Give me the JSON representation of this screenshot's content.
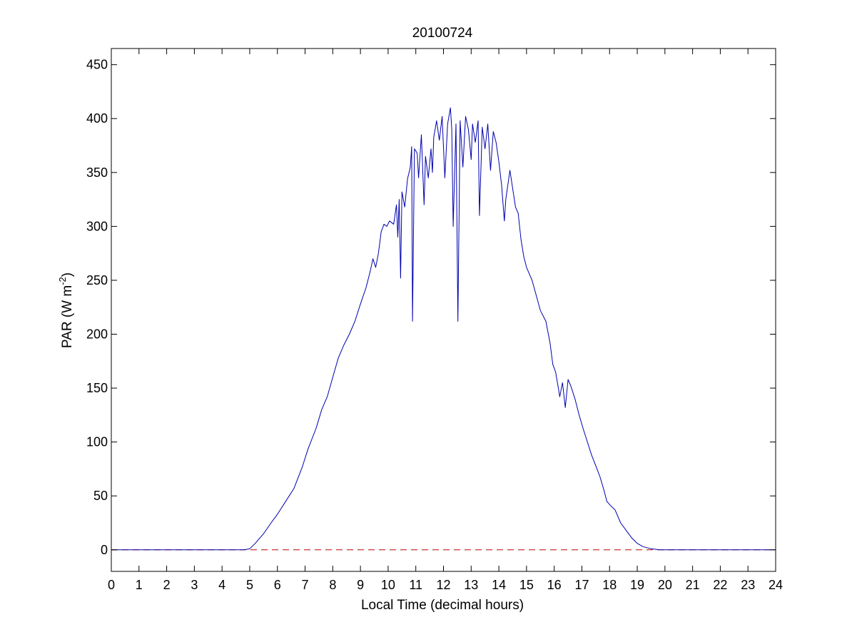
{
  "chart_data": {
    "type": "line",
    "title": "20100724",
    "xlabel": "Local Time (decimal hours)",
    "ylabel": {
      "prefix": "PAR (W m",
      "superscript": "-2",
      "suffix": ")"
    },
    "xlim": [
      0,
      24
    ],
    "ylim": [
      -20,
      465
    ],
    "xticks": [
      "0",
      "1",
      "2",
      "3",
      "4",
      "5",
      "6",
      "7",
      "8",
      "9",
      "10",
      "11",
      "12",
      "13",
      "14",
      "15",
      "16",
      "17",
      "18",
      "19",
      "20",
      "21",
      "22",
      "23",
      "24"
    ],
    "yticks": [
      "0",
      "50",
      "100",
      "150",
      "200",
      "250",
      "300",
      "350",
      "400",
      "450"
    ],
    "grid": false,
    "colors": {
      "series": "#0000ad",
      "reference": "#c00000",
      "axes": "#000000"
    },
    "series": [
      {
        "points": [
          [
            0,
            0
          ],
          [
            4.8,
            0
          ],
          [
            5.0,
            1
          ],
          [
            5.2,
            6
          ],
          [
            5.5,
            15
          ],
          [
            5.8,
            26
          ],
          [
            6.0,
            33
          ],
          [
            6.3,
            45
          ],
          [
            6.6,
            57
          ],
          [
            6.9,
            77
          ],
          [
            7.1,
            93
          ],
          [
            7.4,
            113
          ],
          [
            7.6,
            130
          ],
          [
            7.7,
            136
          ],
          [
            7.8,
            142
          ],
          [
            8.0,
            160
          ],
          [
            8.2,
            178
          ],
          [
            8.4,
            190
          ],
          [
            8.6,
            200
          ],
          [
            8.8,
            212
          ],
          [
            9.0,
            228
          ],
          [
            9.2,
            243
          ],
          [
            9.35,
            258
          ],
          [
            9.45,
            270
          ],
          [
            9.55,
            262
          ],
          [
            9.65,
            275
          ],
          [
            9.75,
            295
          ],
          [
            9.85,
            302
          ],
          [
            9.95,
            300
          ],
          [
            10.05,
            305
          ],
          [
            10.2,
            302
          ],
          [
            10.3,
            320
          ],
          [
            10.35,
            290
          ],
          [
            10.4,
            325
          ],
          [
            10.45,
            252
          ],
          [
            10.5,
            332
          ],
          [
            10.6,
            318
          ],
          [
            10.7,
            344
          ],
          [
            10.8,
            355
          ],
          [
            10.85,
            374
          ],
          [
            10.88,
            212
          ],
          [
            10.95,
            372
          ],
          [
            11.05,
            368
          ],
          [
            11.1,
            345
          ],
          [
            11.2,
            385
          ],
          [
            11.3,
            320
          ],
          [
            11.35,
            365
          ],
          [
            11.45,
            345
          ],
          [
            11.55,
            372
          ],
          [
            11.6,
            350
          ],
          [
            11.65,
            383
          ],
          [
            11.75,
            398
          ],
          [
            11.85,
            380
          ],
          [
            11.95,
            402
          ],
          [
            12.05,
            345
          ],
          [
            12.15,
            395
          ],
          [
            12.25,
            410
          ],
          [
            12.3,
            390
          ],
          [
            12.35,
            300
          ],
          [
            12.45,
            395
          ],
          [
            12.52,
            212
          ],
          [
            12.6,
            398
          ],
          [
            12.7,
            355
          ],
          [
            12.8,
            402
          ],
          [
            12.9,
            390
          ],
          [
            13.0,
            362
          ],
          [
            13.05,
            395
          ],
          [
            13.15,
            378
          ],
          [
            13.25,
            398
          ],
          [
            13.3,
            310
          ],
          [
            13.4,
            392
          ],
          [
            13.5,
            372
          ],
          [
            13.6,
            395
          ],
          [
            13.7,
            352
          ],
          [
            13.8,
            388
          ],
          [
            13.9,
            378
          ],
          [
            14.0,
            360
          ],
          [
            14.1,
            338
          ],
          [
            14.2,
            305
          ],
          [
            14.25,
            325
          ],
          [
            14.4,
            352
          ],
          [
            14.6,
            318
          ],
          [
            14.7,
            312
          ],
          [
            14.8,
            288
          ],
          [
            14.9,
            272
          ],
          [
            15.0,
            262
          ],
          [
            15.2,
            250
          ],
          [
            15.35,
            236
          ],
          [
            15.5,
            222
          ],
          [
            15.7,
            212
          ],
          [
            15.85,
            192
          ],
          [
            15.95,
            172
          ],
          [
            16.05,
            165
          ],
          [
            16.15,
            150
          ],
          [
            16.2,
            142
          ],
          [
            16.3,
            155
          ],
          [
            16.4,
            132
          ],
          [
            16.5,
            158
          ],
          [
            16.6,
            152
          ],
          [
            16.75,
            140
          ],
          [
            16.9,
            125
          ],
          [
            17.05,
            112
          ],
          [
            17.2,
            100
          ],
          [
            17.35,
            88
          ],
          [
            17.5,
            78
          ],
          [
            17.65,
            68
          ],
          [
            17.8,
            55
          ],
          [
            17.9,
            45
          ],
          [
            18.0,
            42
          ],
          [
            18.2,
            37
          ],
          [
            18.4,
            25
          ],
          [
            18.6,
            18
          ],
          [
            18.8,
            11
          ],
          [
            19.0,
            6
          ],
          [
            19.2,
            3
          ],
          [
            19.5,
            1
          ],
          [
            19.8,
            0
          ],
          [
            24,
            0
          ]
        ]
      }
    ],
    "reference_line": {
      "y": 0,
      "style": "dashed"
    }
  }
}
